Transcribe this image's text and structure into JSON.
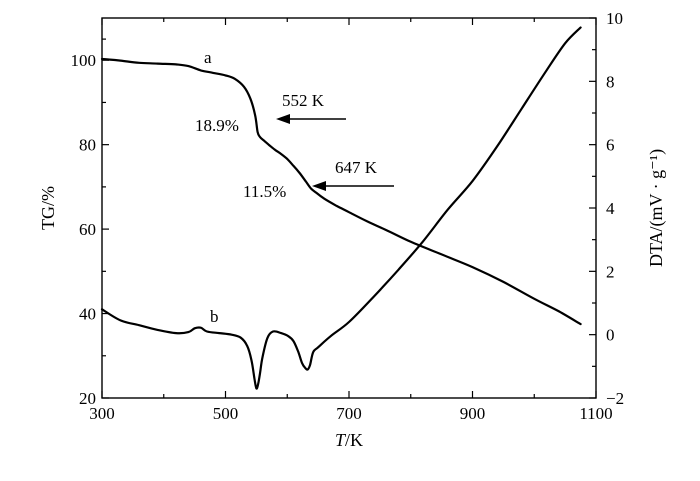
{
  "chart_data": {
    "type": "line",
    "xlabel_italic": "T",
    "xlabel_unit": "/K",
    "ylabel_left": "TG/%",
    "ylabel_right": "DTA/(mV · g⁻¹)",
    "xlim": [
      300,
      1100
    ],
    "ylim_left": [
      20,
      110
    ],
    "ylim_right": [
      -2,
      10
    ],
    "x_ticks": [
      300,
      500,
      700,
      900,
      1100
    ],
    "y_left_ticks": [
      20,
      40,
      60,
      80,
      100
    ],
    "y_right_ticks": [
      -2,
      0,
      2,
      4,
      6,
      8,
      10
    ],
    "series": [
      {
        "name": "a",
        "axis": "left",
        "x": [
          300,
          330,
          360,
          390,
          420,
          440,
          460,
          480,
          500,
          515,
          530,
          540,
          548,
          552,
          556,
          562,
          570,
          580,
          590,
          600,
          610,
          620,
          630,
          638,
          647,
          660,
          680,
          700,
          730,
          760,
          800,
          850,
          900,
          950,
          1000,
          1040,
          1075
        ],
        "values": [
          100.3,
          99.9,
          99.4,
          99.2,
          99.0,
          98.6,
          97.6,
          97.0,
          96.4,
          95.6,
          93.7,
          91.0,
          87.0,
          83.0,
          81.8,
          81.0,
          80.0,
          78.8,
          77.8,
          76.6,
          75.0,
          73.3,
          71.3,
          69.7,
          68.6,
          67.2,
          65.5,
          64.0,
          61.8,
          59.8,
          57.0,
          54.0,
          51.0,
          47.5,
          43.5,
          40.5,
          37.5
        ]
      },
      {
        "name": "b",
        "axis": "right",
        "x": [
          300,
          330,
          360,
          390,
          420,
          440,
          450,
          460,
          470,
          490,
          510,
          525,
          535,
          542,
          547,
          550,
          553,
          556,
          560,
          568,
          577,
          590,
          602,
          610,
          618,
          624,
          629,
          633,
          637,
          642,
          650,
          670,
          700,
          740,
          780,
          820,
          860,
          900,
          940,
          980,
          1020,
          1050,
          1075
        ],
        "values": [
          0.8,
          0.45,
          0.3,
          0.15,
          0.05,
          0.08,
          0.2,
          0.22,
          0.1,
          0.05,
          0.0,
          -0.1,
          -0.35,
          -0.8,
          -1.4,
          -1.7,
          -1.55,
          -1.2,
          -0.7,
          -0.1,
          0.1,
          0.05,
          -0.05,
          -0.2,
          -0.55,
          -0.9,
          -1.05,
          -1.1,
          -0.95,
          -0.55,
          -0.4,
          -0.05,
          0.4,
          1.2,
          2.05,
          2.95,
          3.95,
          4.85,
          5.95,
          7.15,
          8.35,
          9.2,
          9.7
        ]
      }
    ],
    "annotations": {
      "curve_a_label": "a",
      "curve_b_label": "b",
      "peak1_temp": "552 K",
      "peak1_loss": "18.9%",
      "peak2_temp": "647 K",
      "peak2_loss": "11.5%"
    },
    "grid": false,
    "legend": "none"
  }
}
